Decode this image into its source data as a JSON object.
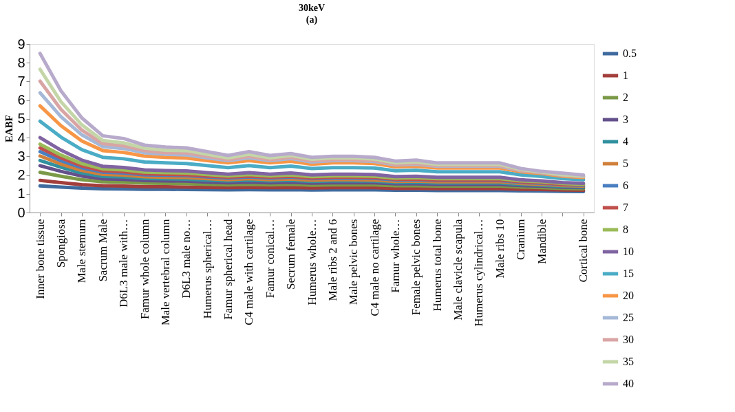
{
  "chart_data": {
    "type": "line",
    "title": "30keV",
    "subtitle": "(a)",
    "ylabel": "EABF",
    "categories": [
      "Inner bone tissue",
      "Spongiosa",
      "Male stemum",
      "Sacrum Male",
      "D6L3 male with…",
      "Famur whole column",
      "Male vertebral column",
      "D6L3 male no…",
      "Humerus spherical…",
      "Famur spherical head",
      "C4 male with cartilage",
      "Famur conical…",
      "Secrum female",
      "Humerus whole…",
      "Male ribs 2 and 6",
      "Male pelvic bones",
      "C4 male no cartilage",
      "Famur whole…",
      "Female pelvic bones",
      "Humerus total bone",
      "Male clavicle scapula",
      "Humerus cylindrical…",
      "Male ribs 10",
      "Cranium",
      "Mandible",
      null,
      "Cortical bone"
    ],
    "ylim": [
      0,
      9
    ],
    "yticks": [
      0,
      1,
      2,
      3,
      4,
      5,
      6,
      7,
      8,
      9
    ],
    "grid": false,
    "legend": "right",
    "marker": "none",
    "line_style": "solid",
    "series": [
      {
        "name": "0.5",
        "color": "#3f6b9f",
        "values": [
          1.42,
          1.36,
          1.3,
          1.27,
          1.26,
          1.24,
          1.24,
          1.23,
          1.22,
          1.21,
          1.22,
          1.21,
          1.22,
          1.2,
          1.21,
          1.21,
          1.21,
          1.19,
          1.19,
          1.18,
          1.18,
          1.18,
          1.18,
          1.16,
          1.15,
          1.13,
          1.12
        ]
      },
      {
        "name": "1",
        "color": "#a23e3b",
        "values": [
          1.72,
          1.6,
          1.49,
          1.43,
          1.41,
          1.38,
          1.38,
          1.36,
          1.34,
          1.33,
          1.34,
          1.33,
          1.34,
          1.31,
          1.33,
          1.33,
          1.33,
          1.29,
          1.29,
          1.28,
          1.28,
          1.28,
          1.28,
          1.24,
          1.23,
          1.2,
          1.19
        ]
      },
      {
        "name": "2",
        "color": "#7b9a48",
        "values": [
          2.15,
          1.94,
          1.75,
          1.64,
          1.62,
          1.57,
          1.56,
          1.54,
          1.51,
          1.48,
          1.51,
          1.48,
          1.51,
          1.46,
          1.48,
          1.48,
          1.48,
          1.43,
          1.43,
          1.41,
          1.41,
          1.41,
          1.41,
          1.36,
          1.33,
          1.29,
          1.27
        ]
      },
      {
        "name": "3",
        "color": "#64508a",
        "values": [
          2.5,
          2.2,
          1.95,
          1.8,
          1.77,
          1.71,
          1.69,
          1.68,
          1.63,
          1.59,
          1.63,
          1.59,
          1.62,
          1.57,
          1.59,
          1.59,
          1.59,
          1.53,
          1.53,
          1.5,
          1.5,
          1.5,
          1.5,
          1.44,
          1.41,
          1.35,
          1.33
        ]
      },
      {
        "name": "4",
        "color": "#32919f",
        "values": [
          2.78,
          2.42,
          2.11,
          1.93,
          1.9,
          1.82,
          1.8,
          1.78,
          1.73,
          1.69,
          1.73,
          1.69,
          1.72,
          1.66,
          1.69,
          1.69,
          1.68,
          1.61,
          1.61,
          1.58,
          1.58,
          1.58,
          1.58,
          1.5,
          1.46,
          1.4,
          1.37
        ]
      },
      {
        "name": "5",
        "color": "#d0803a",
        "values": [
          3.02,
          2.59,
          2.25,
          2.04,
          2.0,
          1.91,
          1.88,
          1.87,
          1.81,
          1.75,
          1.81,
          1.75,
          1.79,
          1.73,
          1.75,
          1.75,
          1.74,
          1.66,
          1.68,
          1.64,
          1.64,
          1.64,
          1.64,
          1.55,
          1.51,
          1.44,
          1.41
        ]
      },
      {
        "name": "6",
        "color": "#4a7fc1",
        "values": [
          3.25,
          2.77,
          2.39,
          2.16,
          2.11,
          2.01,
          1.99,
          1.97,
          1.9,
          1.84,
          1.9,
          1.84,
          1.89,
          1.81,
          1.84,
          1.84,
          1.83,
          1.74,
          1.75,
          1.71,
          1.71,
          1.71,
          1.71,
          1.61,
          1.56,
          1.49,
          1.45
        ]
      },
      {
        "name": "7",
        "color": "#c0504d",
        "values": [
          3.45,
          2.92,
          2.49,
          2.23,
          2.18,
          2.07,
          2.04,
          2.02,
          1.95,
          1.89,
          1.95,
          1.89,
          1.94,
          1.85,
          1.89,
          1.89,
          1.87,
          1.78,
          1.79,
          1.74,
          1.74,
          1.74,
          1.74,
          1.64,
          1.59,
          1.51,
          1.48
        ]
      },
      {
        "name": "8",
        "color": "#9bbb59",
        "values": [
          3.65,
          3.07,
          2.61,
          2.33,
          2.28,
          2.16,
          2.13,
          2.11,
          2.03,
          1.96,
          2.03,
          1.96,
          2.01,
          1.92,
          1.96,
          1.96,
          1.94,
          1.84,
          1.86,
          1.81,
          1.81,
          1.81,
          1.81,
          1.69,
          1.64,
          1.55,
          1.51
        ]
      },
      {
        "name": "10",
        "color": "#8064a2",
        "values": [
          4.0,
          3.33,
          2.8,
          2.47,
          2.41,
          2.28,
          2.24,
          2.22,
          2.13,
          2.05,
          2.13,
          2.05,
          2.11,
          2.01,
          2.05,
          2.05,
          2.03,
          1.92,
          1.94,
          1.88,
          1.88,
          1.88,
          1.88,
          1.75,
          1.69,
          1.6,
          1.56
        ]
      },
      {
        "name": "15",
        "color": "#4bacc6",
        "values": [
          4.88,
          4.03,
          3.36,
          2.95,
          2.87,
          2.7,
          2.65,
          2.62,
          2.51,
          2.4,
          2.51,
          2.4,
          2.48,
          2.35,
          2.4,
          2.4,
          2.38,
          2.23,
          2.26,
          2.18,
          2.18,
          2.18,
          2.18,
          2.01,
          1.93,
          1.81,
          1.75
        ]
      },
      {
        "name": "20",
        "color": "#f79646",
        "values": [
          5.7,
          4.64,
          3.82,
          3.31,
          3.21,
          3.01,
          2.95,
          2.91,
          2.77,
          2.65,
          2.77,
          2.65,
          2.74,
          2.58,
          2.65,
          2.65,
          2.62,
          2.44,
          2.47,
          2.38,
          2.38,
          2.38,
          2.38,
          2.18,
          2.08,
          1.94,
          1.87
        ]
      },
      {
        "name": "25",
        "color": "#a5b8d8",
        "values": [
          6.4,
          5.12,
          4.15,
          3.52,
          3.42,
          3.19,
          3.11,
          3.08,
          2.92,
          2.77,
          2.92,
          2.77,
          2.88,
          2.7,
          2.77,
          2.77,
          2.73,
          2.54,
          2.58,
          2.47,
          2.47,
          2.47,
          2.47,
          2.24,
          2.13,
          1.99,
          1.92
        ]
      },
      {
        "name": "30",
        "color": "#d8a5a4",
        "values": [
          7.02,
          5.51,
          4.4,
          3.68,
          3.56,
          3.31,
          3.2,
          3.19,
          3.0,
          2.83,
          3.0,
          2.83,
          2.95,
          2.76,
          2.83,
          2.83,
          2.78,
          2.58,
          2.63,
          2.51,
          2.51,
          2.51,
          2.51,
          2.26,
          2.14,
          2.0,
          1.93
        ]
      },
      {
        "name": "35",
        "color": "#c4d6a8",
        "values": [
          7.65,
          5.92,
          4.68,
          3.85,
          3.72,
          3.44,
          3.32,
          3.31,
          3.11,
          2.92,
          3.11,
          2.92,
          3.05,
          2.85,
          2.92,
          2.92,
          2.86,
          2.65,
          2.71,
          2.57,
          2.57,
          2.57,
          2.57,
          2.3,
          2.17,
          2.02,
          1.95
        ]
      },
      {
        "name": "40",
        "color": "#b7aacb",
        "values": [
          8.5,
          6.5,
          5.05,
          4.1,
          3.95,
          3.6,
          3.5,
          3.45,
          3.25,
          3.05,
          3.25,
          3.05,
          3.15,
          2.95,
          3.0,
          3.0,
          2.95,
          2.75,
          2.8,
          2.65,
          2.65,
          2.65,
          2.65,
          2.35,
          2.2,
          2.1,
          2.0
        ]
      }
    ]
  }
}
